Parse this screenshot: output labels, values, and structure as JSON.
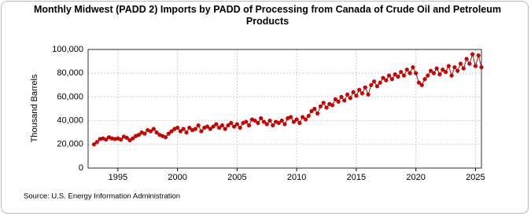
{
  "chart_data": {
    "type": "line",
    "title": "Monthly Midwest (PADD 2) Imports by PADD of Processing from Canada of Crude Oil and Petroleum Products",
    "y_label": "Thousand Barrels",
    "source": "Source: U.S. Energy Information Administration",
    "x": [
      1993,
      1993.25,
      1993.5,
      1993.75,
      1994,
      1994.25,
      1994.5,
      1994.75,
      1995,
      1995.25,
      1995.5,
      1995.75,
      1996,
      1996.25,
      1996.5,
      1996.75,
      1997,
      1997.25,
      1997.5,
      1997.75,
      1998,
      1998.25,
      1998.5,
      1998.75,
      1999,
      1999.25,
      1999.5,
      1999.75,
      2000,
      2000.25,
      2000.5,
      2000.75,
      2001,
      2001.25,
      2001.5,
      2001.75,
      2002,
      2002.25,
      2002.5,
      2002.75,
      2003,
      2003.25,
      2003.5,
      2003.75,
      2004,
      2004.25,
      2004.5,
      2004.75,
      2005,
      2005.25,
      2005.5,
      2005.75,
      2006,
      2006.25,
      2006.5,
      2006.75,
      2007,
      2007.25,
      2007.5,
      2007.75,
      2008,
      2008.25,
      2008.5,
      2008.75,
      2009,
      2009.25,
      2009.5,
      2009.75,
      2010,
      2010.25,
      2010.5,
      2010.75,
      2011,
      2011.25,
      2011.5,
      2011.75,
      2012,
      2012.25,
      2012.5,
      2012.75,
      2013,
      2013.25,
      2013.5,
      2013.75,
      2014,
      2014.25,
      2014.5,
      2014.75,
      2015,
      2015.25,
      2015.5,
      2015.75,
      2016,
      2016.25,
      2016.5,
      2016.75,
      2017,
      2017.25,
      2017.5,
      2017.75,
      2018,
      2018.25,
      2018.5,
      2018.75,
      2019,
      2019.25,
      2019.5,
      2019.75,
      2020,
      2020.25,
      2020.5,
      2020.75,
      2021,
      2021.25,
      2021.5,
      2021.75,
      2022,
      2022.25,
      2022.5,
      2022.75,
      2023,
      2023.25,
      2023.5,
      2023.75,
      2024,
      2024.25,
      2024.5,
      2024.75,
      2025,
      2025.25,
      2025.5
    ],
    "series": [
      {
        "name": "Imports",
        "color": "#cc0000",
        "line_color": "#8b1a1a",
        "values": [
          20000,
          22000,
          24500,
          25000,
          24000,
          26000,
          25000,
          24500,
          25000,
          24000,
          26500,
          25500,
          23500,
          25000,
          27000,
          28000,
          30000,
          29000,
          32000,
          31000,
          33000,
          30000,
          28000,
          27000,
          26000,
          29000,
          31000,
          33000,
          34000,
          31000,
          33000,
          30000,
          34000,
          32000,
          33000,
          36000,
          31000,
          34000,
          35000,
          33000,
          35000,
          37000,
          34000,
          36000,
          33000,
          36000,
          38000,
          35000,
          37000,
          34000,
          38000,
          39000,
          36000,
          41000,
          40000,
          38000,
          42000,
          39000,
          37000,
          40000,
          36000,
          39000,
          38000,
          40000,
          37000,
          42000,
          43000,
          39000,
          41000,
          38000,
          43000,
          41000,
          44000,
          48000,
          50000,
          46000,
          52000,
          55000,
          51000,
          54000,
          53000,
          58000,
          56000,
          60000,
          57000,
          62000,
          59000,
          64000,
          61000,
          66000,
          63000,
          68000,
          62000,
          70000,
          73000,
          69000,
          72000,
          76000,
          74000,
          78000,
          75000,
          79000,
          77000,
          81000,
          78000,
          83000,
          80000,
          85000,
          80000,
          72000,
          70000,
          75000,
          78000,
          82000,
          80000,
          84000,
          79000,
          83000,
          81000,
          86000,
          78000,
          85000,
          82000,
          88000,
          84000,
          92000,
          88000,
          96000,
          86000,
          95000,
          85000
        ]
      }
    ],
    "xlim": [
      1992.5,
      2025.5
    ],
    "xticks": [
      1995,
      2000,
      2005,
      2010,
      2015,
      2020,
      2025
    ],
    "ylim": [
      0,
      100000
    ],
    "yticks": [
      0,
      {
        "value": 20000,
        "label": "20,000"
      },
      {
        "value": 40000,
        "label": "40,000"
      },
      {
        "value": 60000,
        "label": "60,000"
      },
      {
        "value": 80000,
        "label": "80,000"
      },
      {
        "value": 100000,
        "label": "100,000"
      }
    ],
    "grid": true
  }
}
